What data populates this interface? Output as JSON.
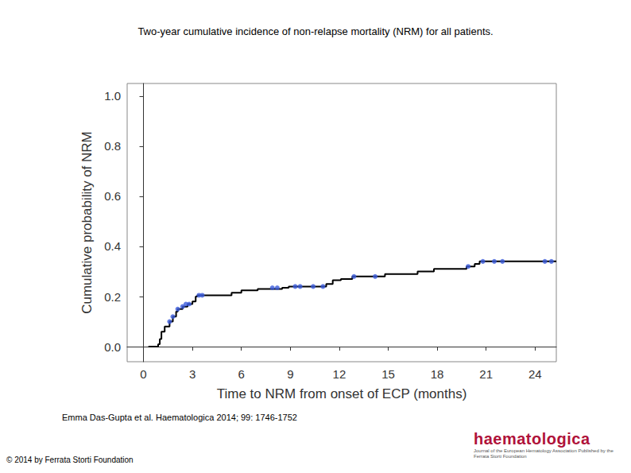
{
  "chart_data": {
    "type": "line",
    "title": "Two-year cumulative incidence of non-relapse mortality (NRM) for all patients.",
    "x_label": "Time to NRM from onset of ECP (months)",
    "y_label": "Cumulative probability of NRM",
    "xlim": [
      -1,
      25.3
    ],
    "xticks": [
      0,
      3,
      6,
      9,
      12,
      15,
      18,
      21,
      24
    ],
    "ylim": [
      -0.06,
      1.05
    ],
    "yticks": [
      {
        "value": 0,
        "label": "0.0"
      },
      {
        "value": 0.2,
        "label": "0.2"
      },
      {
        "value": 0.4,
        "label": "0.4"
      },
      {
        "value": 0.6,
        "label": "0.6"
      },
      {
        "value": 0.8,
        "label": "0.8"
      },
      {
        "value": 1,
        "label": "1.0"
      }
    ],
    "grid": false,
    "series": [
      {
        "type": "step",
        "color": "#000000",
        "line_style": "solid",
        "x": [
          0.3,
          0.9,
          1.0,
          1.1,
          1.3,
          1.6,
          1.8,
          2.0,
          2.1,
          2.4,
          2.7,
          3.0,
          3.2,
          3.3,
          5.4,
          6.0,
          7.0,
          8.5,
          8.9,
          11.2,
          11.6,
          12.1,
          12.8,
          14.8,
          16.8,
          17.8,
          19.8,
          20.3,
          20.6,
          25.3
        ],
        "values": [
          0,
          0.01,
          0.03,
          0.06,
          0.08,
          0.1,
          0.12,
          0.14,
          0.15,
          0.16,
          0.17,
          0.18,
          0.2,
          0.205,
          0.215,
          0.225,
          0.23,
          0.235,
          0.24,
          0.25,
          0.265,
          0.27,
          0.28,
          0.29,
          0.3,
          0.31,
          0.32,
          0.33,
          0.34,
          0.34
        ]
      },
      {
        "type": "scatter",
        "color": "#3b5bdb",
        "marker": "circle",
        "x": [
          1.6,
          1.8,
          2.1,
          2.4,
          2.6,
          2.8,
          3.4,
          3.6,
          7.9,
          8.2,
          9.3,
          9.6,
          10.4,
          11.0,
          12.9,
          14.2,
          19.9,
          20.8,
          21.5,
          22.0,
          24.6,
          25.0
        ],
        "values": [
          0.1,
          0.12,
          0.15,
          0.16,
          0.17,
          0.17,
          0.205,
          0.205,
          0.235,
          0.235,
          0.24,
          0.24,
          0.24,
          0.24,
          0.28,
          0.28,
          0.32,
          0.34,
          0.34,
          0.34,
          0.34,
          0.34
        ]
      }
    ]
  },
  "page": {
    "citation": "Emma Das-Gupta et al. Haematologica 2014; 99: 1746-1752",
    "copyright": "© 2014 by Ferrata Storti Foundation",
    "logo": "haematologica",
    "logo_subtitle": "Journal of the European Hematology Association Published by the Ferrata Storti Foundation"
  }
}
